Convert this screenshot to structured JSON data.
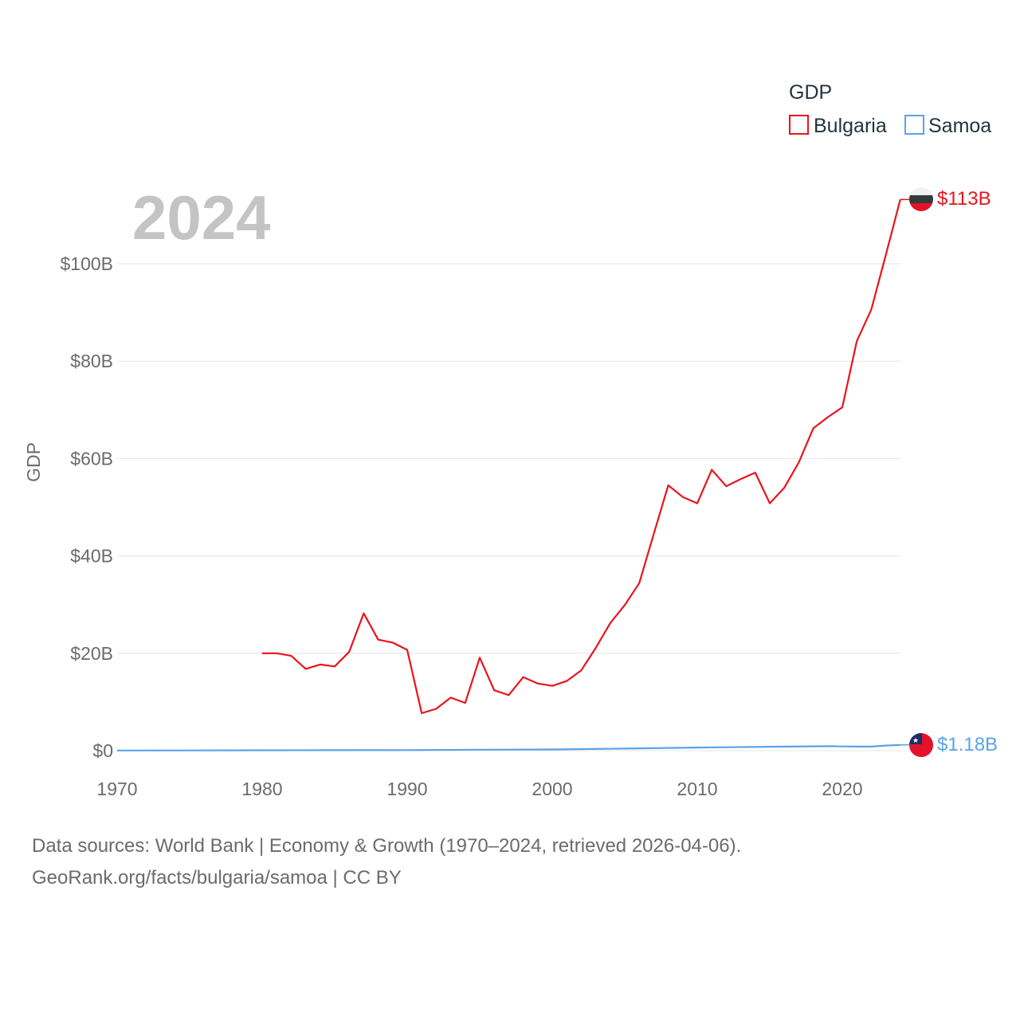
{
  "chart_data": {
    "type": "line",
    "title": "GDP",
    "ylabel": "GDP",
    "year_label": "2024",
    "x_ticks": [
      "1970",
      "1980",
      "1990",
      "2000",
      "2010",
      "2020"
    ],
    "y_ticks": [
      "$0",
      "$20B",
      "$40B",
      "$60B",
      "$80B",
      "$100B"
    ],
    "xlim": [
      1970,
      2024
    ],
    "ylim": [
      0,
      113
    ],
    "legend": {
      "title": "GDP",
      "entries": [
        "Bulgaria",
        "Samoa"
      ]
    },
    "series": [
      {
        "name": "Bulgaria",
        "color": "#e8141c",
        "end_label": "$113B",
        "x": [
          1980,
          1981,
          1982,
          1983,
          1984,
          1985,
          1986,
          1987,
          1988,
          1989,
          1990,
          1991,
          1992,
          1993,
          1994,
          1995,
          1996,
          1997,
          1998,
          1999,
          2000,
          2001,
          2002,
          2003,
          2004,
          2005,
          2006,
          2007,
          2008,
          2009,
          2010,
          2011,
          2012,
          2013,
          2014,
          2015,
          2016,
          2017,
          2018,
          2019,
          2020,
          2021,
          2022,
          2023,
          2024
        ],
        "values": [
          20.0,
          20.0,
          19.5,
          16.8,
          17.7,
          17.3,
          20.3,
          28.2,
          22.8,
          22.2,
          20.7,
          7.7,
          8.6,
          10.9,
          9.8,
          19.1,
          12.4,
          11.4,
          15.1,
          13.8,
          13.3,
          14.3,
          16.5,
          21.1,
          26.2,
          29.9,
          34.4,
          44.5,
          54.5,
          52.1,
          50.8,
          57.7,
          54.3,
          55.8,
          57.1,
          50.8,
          54.0,
          59.2,
          66.2,
          68.5,
          70.5,
          84.1,
          90.6,
          101.8,
          113.2
        ]
      },
      {
        "name": "Samoa",
        "color": "#5aa3e8",
        "end_label": "$1.18B",
        "x": [
          1970,
          1975,
          1980,
          1985,
          1990,
          1995,
          2000,
          2005,
          2010,
          2015,
          2019,
          2020,
          2021,
          2022,
          2023,
          2024
        ],
        "values": [
          0.03,
          0.05,
          0.08,
          0.1,
          0.12,
          0.2,
          0.24,
          0.42,
          0.64,
          0.8,
          0.92,
          0.87,
          0.84,
          0.83,
          1.05,
          1.18
        ]
      }
    ]
  },
  "source": {
    "line1": "Data sources: World Bank | Economy & Growth (1970–2024, retrieved 2026-04-06).",
    "line2": "GeoRank.org/facts/bulgaria/samoa | CC BY"
  }
}
